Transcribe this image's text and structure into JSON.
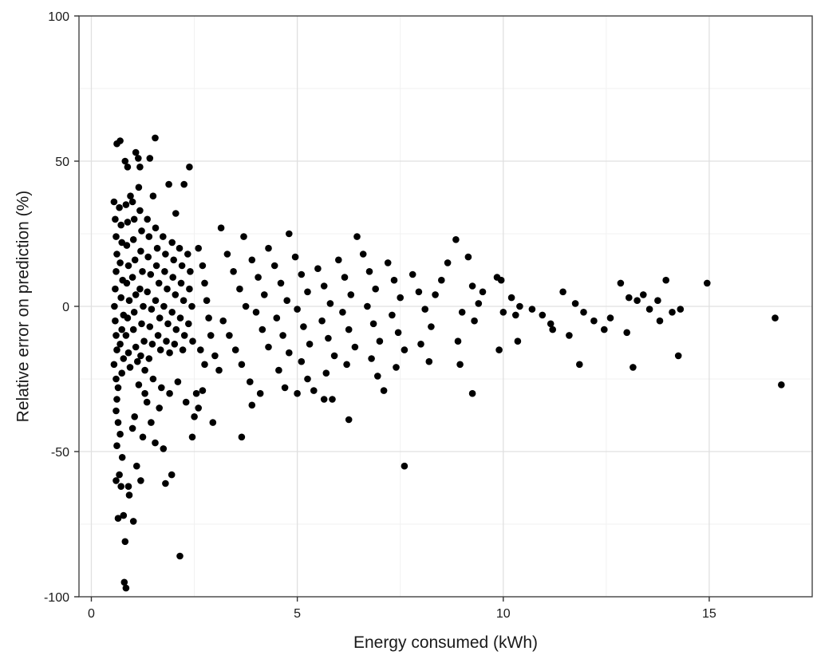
{
  "chart_data": {
    "type": "scatter",
    "title": "",
    "xlabel": "Energy consumed (kWh)",
    "ylabel": "Relative error on prediction (%)",
    "xlim": [
      -0.3,
      17.5
    ],
    "ylim": [
      -100,
      100
    ],
    "xticks": [
      0,
      5,
      10,
      15
    ],
    "xtick_labels": [
      "0",
      "5",
      "10",
      "15"
    ],
    "yticks": [
      -100,
      -50,
      0,
      50,
      100
    ],
    "ytick_labels": [
      "-100",
      "-50",
      "0",
      "50",
      "100"
    ],
    "grid": true,
    "legend": "none",
    "point_color": "#000000",
    "points": [
      [
        0.62,
        56
      ],
      [
        0.7,
        57
      ],
      [
        0.82,
        50
      ],
      [
        0.88,
        48
      ],
      [
        1.08,
        53
      ],
      [
        1.14,
        51
      ],
      [
        1.18,
        48
      ],
      [
        1.55,
        58
      ],
      [
        1.42,
        51
      ],
      [
        2.38,
        48
      ],
      [
        2.25,
        42
      ],
      [
        1.88,
        42
      ],
      [
        2.05,
        32
      ],
      [
        1.5,
        38
      ],
      [
        1.15,
        41
      ],
      [
        0.95,
        38
      ],
      [
        0.55,
        36
      ],
      [
        0.58,
        30
      ],
      [
        0.6,
        24
      ],
      [
        0.62,
        18
      ],
      [
        0.6,
        12
      ],
      [
        0.58,
        6
      ],
      [
        0.56,
        0
      ],
      [
        0.58,
        -5
      ],
      [
        0.6,
        -10
      ],
      [
        0.62,
        -15
      ],
      [
        0.55,
        -20
      ],
      [
        0.6,
        -25
      ],
      [
        0.65,
        -28
      ],
      [
        0.62,
        -32
      ],
      [
        0.68,
        34
      ],
      [
        0.72,
        28
      ],
      [
        0.74,
        22
      ],
      [
        0.7,
        15
      ],
      [
        0.76,
        9
      ],
      [
        0.72,
        3
      ],
      [
        0.78,
        -3
      ],
      [
        0.74,
        -8
      ],
      [
        0.7,
        -13
      ],
      [
        0.78,
        -18
      ],
      [
        0.74,
        -23
      ],
      [
        0.84,
        35
      ],
      [
        0.88,
        29
      ],
      [
        0.86,
        21
      ],
      [
        0.9,
        14
      ],
      [
        0.86,
        8
      ],
      [
        0.92,
        2
      ],
      [
        0.88,
        -4
      ],
      [
        0.84,
        -10
      ],
      [
        0.9,
        -16
      ],
      [
        0.94,
        -21
      ],
      [
        1.0,
        36
      ],
      [
        1.04,
        30
      ],
      [
        1.02,
        23
      ],
      [
        1.06,
        16
      ],
      [
        1.0,
        10
      ],
      [
        1.08,
        4
      ],
      [
        1.04,
        -2
      ],
      [
        1.02,
        -8
      ],
      [
        1.08,
        -14
      ],
      [
        1.12,
        -19
      ],
      [
        1.18,
        33
      ],
      [
        1.22,
        26
      ],
      [
        1.2,
        19
      ],
      [
        1.24,
        12
      ],
      [
        1.18,
        6
      ],
      [
        1.26,
        0
      ],
      [
        1.22,
        -6
      ],
      [
        1.28,
        -12
      ],
      [
        1.2,
        -17
      ],
      [
        1.3,
        -22
      ],
      [
        1.36,
        30
      ],
      [
        1.4,
        24
      ],
      [
        1.38,
        17
      ],
      [
        1.44,
        11
      ],
      [
        1.36,
        5
      ],
      [
        1.46,
        -1
      ],
      [
        1.42,
        -7
      ],
      [
        1.48,
        -13
      ],
      [
        1.4,
        -18
      ],
      [
        1.56,
        27
      ],
      [
        1.6,
        20
      ],
      [
        1.58,
        14
      ],
      [
        1.64,
        8
      ],
      [
        1.56,
        2
      ],
      [
        1.66,
        -4
      ],
      [
        1.62,
        -10
      ],
      [
        1.68,
        -15
      ],
      [
        1.74,
        24
      ],
      [
        1.8,
        18
      ],
      [
        1.78,
        12
      ],
      [
        1.84,
        6
      ],
      [
        1.76,
        0
      ],
      [
        1.86,
        -6
      ],
      [
        1.82,
        -12
      ],
      [
        1.9,
        -16
      ],
      [
        1.96,
        22
      ],
      [
        2.0,
        16
      ],
      [
        1.98,
        10
      ],
      [
        2.04,
        4
      ],
      [
        1.96,
        -2
      ],
      [
        2.06,
        -8
      ],
      [
        2.02,
        -13
      ],
      [
        2.14,
        20
      ],
      [
        2.2,
        14
      ],
      [
        2.18,
        8
      ],
      [
        2.24,
        2
      ],
      [
        2.16,
        -4
      ],
      [
        2.26,
        -10
      ],
      [
        2.22,
        -15
      ],
      [
        2.34,
        18
      ],
      [
        2.4,
        12
      ],
      [
        2.38,
        6
      ],
      [
        2.44,
        0
      ],
      [
        2.36,
        -6
      ],
      [
        2.46,
        -12
      ],
      [
        0.6,
        -36
      ],
      [
        0.65,
        -40
      ],
      [
        0.7,
        -44
      ],
      [
        0.62,
        -48
      ],
      [
        0.75,
        -52
      ],
      [
        0.68,
        -58
      ],
      [
        0.72,
        -62
      ],
      [
        0.6,
        -60
      ],
      [
        0.78,
        -72
      ],
      [
        0.82,
        -81
      ],
      [
        0.8,
        -95
      ],
      [
        0.84,
        -97
      ],
      [
        0.9,
        -62
      ],
      [
        0.92,
        -65
      ],
      [
        1.0,
        -42
      ],
      [
        1.05,
        -38
      ],
      [
        1.1,
        -55
      ],
      [
        1.2,
        -60
      ],
      [
        1.25,
        -45
      ],
      [
        1.35,
        -33
      ],
      [
        1.45,
        -40
      ],
      [
        1.55,
        -47
      ],
      [
        1.65,
        -35
      ],
      [
        1.75,
        -49
      ],
      [
        1.8,
        -61
      ],
      [
        1.95,
        -58
      ],
      [
        2.15,
        -86
      ],
      [
        1.02,
        -74
      ],
      [
        0.65,
        -73
      ],
      [
        1.15,
        -27
      ],
      [
        1.3,
        -30
      ],
      [
        1.5,
        -25
      ],
      [
        1.7,
        -28
      ],
      [
        1.9,
        -30
      ],
      [
        2.1,
        -26
      ],
      [
        2.3,
        -33
      ],
      [
        2.45,
        -45
      ],
      [
        2.5,
        -38
      ],
      [
        2.55,
        -30
      ],
      [
        2.6,
        -35
      ],
      [
        2.7,
        -29
      ],
      [
        2.6,
        20
      ],
      [
        2.7,
        14
      ],
      [
        2.75,
        8
      ],
      [
        2.8,
        2
      ],
      [
        2.85,
        -4
      ],
      [
        2.9,
        -10
      ],
      [
        3.0,
        -17
      ],
      [
        3.1,
        -22
      ],
      [
        2.65,
        -15
      ],
      [
        2.75,
        -20
      ],
      [
        2.95,
        -40
      ],
      [
        3.15,
        27
      ],
      [
        3.3,
        18
      ],
      [
        3.45,
        12
      ],
      [
        3.6,
        6
      ],
      [
        3.75,
        0
      ],
      [
        3.2,
        -5
      ],
      [
        3.35,
        -10
      ],
      [
        3.5,
        -15
      ],
      [
        3.65,
        -20
      ],
      [
        3.85,
        -26
      ],
      [
        3.7,
        24
      ],
      [
        3.9,
        16
      ],
      [
        4.05,
        10
      ],
      [
        4.2,
        4
      ],
      [
        4.0,
        -2
      ],
      [
        4.15,
        -8
      ],
      [
        4.3,
        -14
      ],
      [
        4.1,
        -30
      ],
      [
        3.9,
        -34
      ],
      [
        3.65,
        -45
      ],
      [
        4.3,
        20
      ],
      [
        4.45,
        14
      ],
      [
        4.6,
        8
      ],
      [
        4.75,
        2
      ],
      [
        4.5,
        -4
      ],
      [
        4.65,
        -10
      ],
      [
        4.8,
        -16
      ],
      [
        4.55,
        -22
      ],
      [
        4.7,
        -28
      ],
      [
        4.8,
        25
      ],
      [
        4.95,
        17
      ],
      [
        5.1,
        11
      ],
      [
        5.25,
        5
      ],
      [
        5.0,
        -1
      ],
      [
        5.15,
        -7
      ],
      [
        5.3,
        -13
      ],
      [
        5.1,
        -19
      ],
      [
        5.25,
        -25
      ],
      [
        5.4,
        -29
      ],
      [
        5.0,
        -30
      ],
      [
        5.5,
        13
      ],
      [
        5.65,
        7
      ],
      [
        5.8,
        1
      ],
      [
        5.6,
        -5
      ],
      [
        5.75,
        -11
      ],
      [
        5.9,
        -17
      ],
      [
        5.7,
        -23
      ],
      [
        5.65,
        -32
      ],
      [
        5.85,
        -32
      ],
      [
        6.0,
        16
      ],
      [
        6.15,
        10
      ],
      [
        6.3,
        4
      ],
      [
        6.1,
        -2
      ],
      [
        6.25,
        -8
      ],
      [
        6.4,
        -14
      ],
      [
        6.2,
        -20
      ],
      [
        6.25,
        -39
      ],
      [
        6.45,
        24
      ],
      [
        6.6,
        18
      ],
      [
        6.75,
        12
      ],
      [
        6.9,
        6
      ],
      [
        6.7,
        0
      ],
      [
        6.85,
        -6
      ],
      [
        7.0,
        -12
      ],
      [
        6.8,
        -18
      ],
      [
        6.95,
        -24
      ],
      [
        7.1,
        -29
      ],
      [
        7.2,
        15
      ],
      [
        7.35,
        9
      ],
      [
        7.5,
        3
      ],
      [
        7.3,
        -3
      ],
      [
        7.45,
        -9
      ],
      [
        7.6,
        -15
      ],
      [
        7.4,
        -21
      ],
      [
        7.6,
        -55
      ],
      [
        7.8,
        11
      ],
      [
        7.95,
        5
      ],
      [
        8.1,
        -1
      ],
      [
        8.25,
        -7
      ],
      [
        8.0,
        -13
      ],
      [
        8.2,
        -19
      ],
      [
        8.35,
        4
      ],
      [
        8.5,
        9
      ],
      [
        8.65,
        15
      ],
      [
        8.85,
        23
      ],
      [
        8.9,
        -12
      ],
      [
        9.0,
        -2
      ],
      [
        8.95,
        -20
      ],
      [
        9.15,
        17
      ],
      [
        9.25,
        7
      ],
      [
        9.3,
        -5
      ],
      [
        9.4,
        1
      ],
      [
        9.25,
        -30
      ],
      [
        9.5,
        5
      ],
      [
        9.85,
        10
      ],
      [
        9.95,
        9
      ],
      [
        10.0,
        -2
      ],
      [
        9.9,
        -15
      ],
      [
        10.2,
        3
      ],
      [
        10.3,
        -3
      ],
      [
        10.35,
        -12
      ],
      [
        10.4,
        0
      ],
      [
        10.7,
        -1
      ],
      [
        10.95,
        -3
      ],
      [
        11.15,
        -6
      ],
      [
        11.2,
        -8
      ],
      [
        11.45,
        5
      ],
      [
        11.6,
        -10
      ],
      [
        11.75,
        1
      ],
      [
        11.85,
        -20
      ],
      [
        11.95,
        -2
      ],
      [
        12.2,
        -5
      ],
      [
        12.45,
        -8
      ],
      [
        12.6,
        -4
      ],
      [
        12.85,
        8
      ],
      [
        13.0,
        -9
      ],
      [
        13.05,
        3
      ],
      [
        13.15,
        -21
      ],
      [
        13.25,
        2
      ],
      [
        13.4,
        4
      ],
      [
        13.55,
        -1
      ],
      [
        13.75,
        2
      ],
      [
        13.8,
        -5
      ],
      [
        13.95,
        9
      ],
      [
        14.1,
        -2
      ],
      [
        14.25,
        -17
      ],
      [
        14.3,
        -1
      ],
      [
        14.95,
        8
      ],
      [
        16.6,
        -4
      ],
      [
        16.75,
        -27
      ]
    ]
  }
}
